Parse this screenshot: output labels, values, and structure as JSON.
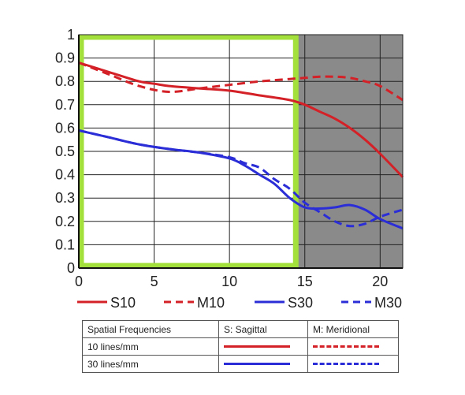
{
  "chart_data": {
    "type": "line",
    "xlim": [
      0,
      21.5
    ],
    "ylim": [
      0,
      1
    ],
    "x_ticks": [
      0,
      5,
      10,
      15,
      20
    ],
    "y_ticks": [
      0,
      0.1,
      0.2,
      0.3,
      0.4,
      0.5,
      0.6,
      0.7,
      0.8,
      0.9,
      1
    ],
    "y_tick_labels": [
      "0",
      "0.1",
      "0.2",
      "0.3",
      "0.4",
      "0.5",
      "0.6",
      "0.7",
      "0.8",
      "0.9",
      "1"
    ],
    "grid": true,
    "shaded_region": {
      "x_start": 14.4,
      "x_end": 21.5,
      "color": "#8a8a8a"
    },
    "highlight_box": {
      "x_start": 0,
      "x_end": 14.4,
      "y_start": 0,
      "y_end": 1,
      "color": "#a4e03c"
    },
    "series": [
      {
        "name": "S10",
        "color": "#d42027",
        "dash": false,
        "x": [
          0,
          2,
          4,
          5,
          6,
          8,
          10,
          12,
          14,
          15,
          16,
          17,
          18,
          19,
          20,
          21.5
        ],
        "y": [
          0.88,
          0.84,
          0.8,
          0.79,
          0.78,
          0.77,
          0.76,
          0.74,
          0.72,
          0.7,
          0.67,
          0.64,
          0.6,
          0.55,
          0.49,
          0.39
        ]
      },
      {
        "name": "M10",
        "color": "#d42027",
        "dash": true,
        "x": [
          0,
          2,
          4,
          6,
          8,
          10,
          12,
          14,
          15,
          16,
          17,
          18,
          19,
          20,
          21.5
        ],
        "y": [
          0.88,
          0.83,
          0.78,
          0.755,
          0.77,
          0.785,
          0.8,
          0.81,
          0.815,
          0.82,
          0.82,
          0.815,
          0.8,
          0.78,
          0.72
        ]
      },
      {
        "name": "S30",
        "color": "#2b2ed6",
        "dash": false,
        "x": [
          0,
          2,
          4,
          6,
          8,
          10,
          11,
          12,
          13,
          14,
          15,
          16,
          17,
          18,
          19,
          20,
          21.5
        ],
        "y": [
          0.59,
          0.56,
          0.53,
          0.51,
          0.495,
          0.47,
          0.44,
          0.4,
          0.36,
          0.3,
          0.26,
          0.255,
          0.26,
          0.27,
          0.25,
          0.21,
          0.17
        ]
      },
      {
        "name": "M30",
        "color": "#2b2ed6",
        "dash": true,
        "x": [
          0,
          2,
          4,
          6,
          8,
          10,
          11,
          12,
          13,
          14,
          15,
          16,
          17,
          18,
          19,
          20,
          21.5
        ],
        "y": [
          0.59,
          0.56,
          0.53,
          0.51,
          0.495,
          0.475,
          0.45,
          0.43,
          0.38,
          0.34,
          0.28,
          0.24,
          0.2,
          0.18,
          0.19,
          0.22,
          0.25
        ]
      }
    ],
    "legend": [
      {
        "label": "S10",
        "color": "#d42027",
        "dash": false
      },
      {
        "label": "M10",
        "color": "#d42027",
        "dash": true
      },
      {
        "label": "S30",
        "color": "#2b2ed6",
        "dash": false
      },
      {
        "label": "M30",
        "color": "#2b2ed6",
        "dash": true
      }
    ]
  },
  "legend_table": {
    "headers": [
      "Spatial Frequencies",
      "S: Sagittal",
      "M: Meridional"
    ],
    "rows": [
      {
        "label": "10 lines/mm"
      },
      {
        "label": "30 lines/mm"
      }
    ]
  }
}
